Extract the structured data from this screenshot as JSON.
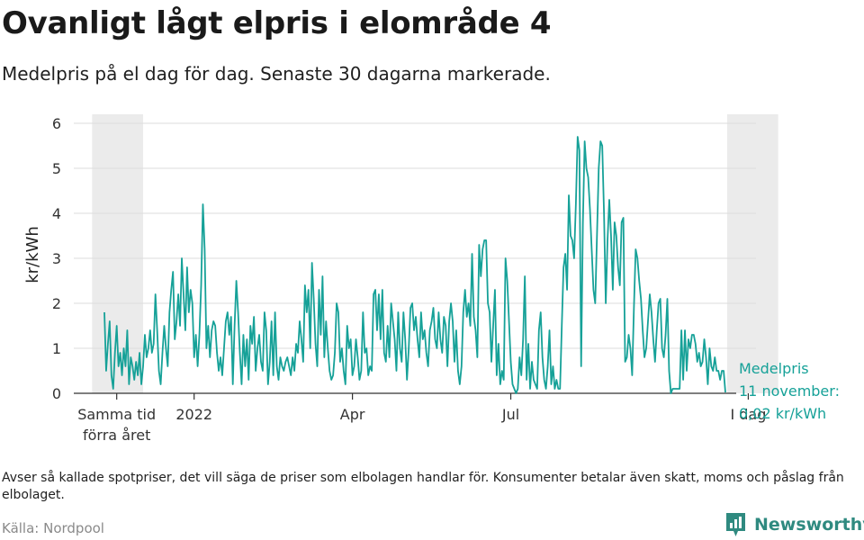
{
  "title": "Ovanligt lågt elpris i elområde 4",
  "subtitle": "Medelpris på el dag för dag.  Senaste 30 dagarna markerade.",
  "footnote": "Avser så kallade spotpriser, det vill säga de priser som elbolagen handlar för. Konsumenter betalar även skatt, moms och påslag från elbolaget.",
  "source": "Källa: Nordpool",
  "brand": {
    "name": "Newsworthy",
    "icon": "newsworthy-logo-icon",
    "color": "#2f8a80"
  },
  "chart_data": {
    "type": "line",
    "ylabel": "kr/kWh",
    "ylim": [
      0,
      6.2
    ],
    "yticks": [
      0,
      1,
      2,
      3,
      4,
      5,
      6
    ],
    "grid": true,
    "xticks": [
      {
        "label": "Samma tid",
        "label2": "förra året",
        "day": 7
      },
      {
        "label": "2022",
        "day": 51
      },
      {
        "label": "Apr",
        "day": 141
      },
      {
        "label": "Jul",
        "day": 231
      },
      {
        "label": "I dag",
        "label2": "",
        "day": 366
      }
    ],
    "highlight_ranges": [
      [
        -7,
        22
      ],
      [
        354,
        383
      ]
    ],
    "color": "#16a198",
    "band_color": "#ebebeb",
    "annotation": {
      "line1": "Medelpris",
      "line2": "11 november:",
      "line3": "0,02 kr/kWh",
      "value": 0.02
    },
    "x_start": "2021-11-11",
    "series": [
      {
        "name": "",
        "values": [
          1.8,
          0.5,
          1.1,
          1.6,
          0.4,
          0.1,
          0.9,
          1.5,
          0.6,
          0.9,
          0.4,
          1.0,
          0.6,
          1.4,
          0.2,
          0.8,
          0.6,
          0.3,
          0.7,
          0.4,
          0.9,
          0.2,
          0.6,
          1.3,
          0.8,
          1.0,
          1.4,
          0.9,
          1.1,
          2.2,
          1.4,
          0.5,
          0.2,
          0.9,
          1.5,
          1.0,
          0.6,
          1.8,
          2.3,
          2.7,
          1.2,
          1.6,
          2.2,
          1.5,
          3.0,
          2.2,
          1.4,
          2.8,
          1.8,
          2.3,
          2.0,
          0.8,
          1.3,
          0.6,
          1.3,
          2.4,
          4.2,
          3.2,
          1.0,
          1.5,
          0.8,
          1.4,
          1.6,
          1.5,
          0.9,
          0.5,
          0.8,
          0.4,
          1.0,
          1.6,
          1.8,
          1.3,
          1.7,
          0.2,
          1.5,
          2.5,
          1.8,
          0.9,
          0.2,
          1.3,
          0.6,
          1.2,
          0.3,
          1.5,
          1.1,
          1.7,
          0.5,
          1.0,
          1.3,
          0.7,
          0.5,
          1.8,
          1.4,
          0.2,
          0.7,
          1.6,
          0.4,
          1.8,
          0.6,
          0.3,
          0.8,
          0.6,
          0.5,
          0.7,
          0.8,
          0.6,
          0.4,
          0.8,
          0.5,
          1.1,
          0.9,
          1.6,
          1.2,
          0.7,
          2.4,
          1.8,
          2.3,
          1.0,
          2.9,
          2.1,
          1.1,
          0.6,
          2.3,
          1.3,
          2.6,
          0.8,
          1.6,
          1.0,
          0.5,
          0.3,
          0.4,
          0.9,
          2.0,
          1.8,
          0.7,
          1.0,
          0.5,
          0.2,
          1.5,
          1.0,
          1.2,
          0.4,
          0.6,
          1.2,
          0.8,
          0.3,
          0.5,
          1.8,
          0.9,
          1.0,
          0.4,
          0.6,
          0.5,
          2.2,
          2.3,
          1.4,
          2.2,
          1.2,
          2.3,
          0.9,
          0.7,
          1.5,
          0.8,
          2.0,
          1.6,
          1.2,
          0.5,
          1.8,
          1.0,
          0.7,
          1.8,
          1.2,
          0.3,
          1.0,
          1.9,
          2.0,
          1.4,
          1.7,
          1.2,
          0.8,
          1.8,
          1.2,
          1.4,
          0.9,
          0.6,
          1.4,
          1.6,
          1.9,
          1.2,
          1.0,
          1.8,
          1.2,
          0.9,
          1.7,
          1.5,
          0.6,
          1.6,
          2.0,
          1.6,
          0.7,
          1.4,
          0.5,
          0.2,
          0.6,
          1.8,
          2.3,
          1.7,
          2.0,
          1.5,
          3.1,
          1.7,
          1.4,
          0.8,
          3.3,
          2.6,
          3.2,
          3.4,
          3.4,
          2.0,
          1.8,
          0.7,
          1.5,
          2.3,
          0.4,
          1.1,
          0.2,
          0.5,
          0.3,
          3.0,
          2.5,
          1.6,
          0.7,
          0.2,
          0.1,
          0.0,
          0.1,
          0.8,
          0.4,
          1.2,
          2.6,
          0.3,
          1.1,
          0.1,
          0.7,
          0.3,
          0.2,
          0.1,
          1.4,
          1.8,
          0.8,
          0.3,
          0.1,
          0.6,
          1.4,
          0.2,
          0.6,
          0.1,
          0.3,
          0.1,
          0.1,
          1.5,
          2.8,
          3.1,
          2.3,
          4.4,
          3.5,
          3.4,
          3.0,
          4.2,
          5.7,
          5.4,
          0.6,
          3.8,
          5.6,
          5.0,
          4.8,
          4.1,
          3.2,
          2.3,
          2.0,
          3.5,
          5.0,
          5.6,
          5.5,
          4.0,
          2.0,
          3.4,
          4.3,
          3.5,
          2.3,
          3.8,
          3.5,
          2.8,
          2.4,
          3.8,
          3.9,
          0.7,
          0.8,
          1.3,
          1.0,
          0.4,
          1.9,
          3.2,
          3.0,
          2.5,
          2.1,
          1.4,
          0.8,
          1.0,
          1.6,
          2.2,
          1.8,
          1.2,
          0.7,
          1.4,
          2.0,
          2.1,
          1.0,
          0.8,
          1.3,
          2.1,
          0.5,
          0.0,
          0.1,
          0.1,
          0.1,
          0.1,
          0.1,
          1.4,
          0.3,
          1.4,
          0.5,
          1.2,
          1.0,
          1.3,
          1.3,
          1.1,
          0.7,
          0.9,
          0.6,
          0.7,
          1.2,
          0.8,
          0.2,
          1.0,
          0.6,
          0.5,
          0.8,
          0.5,
          0.5,
          0.3,
          0.5,
          0.5,
          0.02
        ]
      }
    ]
  }
}
